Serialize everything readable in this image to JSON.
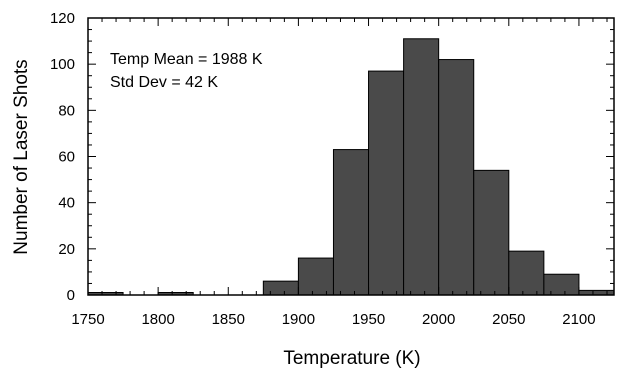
{
  "chart_data": {
    "type": "bar",
    "bin_width": 25,
    "bin_starts": [
      1750,
      1775,
      1800,
      1825,
      1850,
      1875,
      1900,
      1925,
      1950,
      1975,
      2000,
      2025,
      2050,
      2075,
      2100
    ],
    "values": [
      1,
      0,
      1,
      0,
      0,
      6,
      16,
      63,
      97,
      111,
      102,
      54,
      19,
      9,
      2
    ],
    "xlabel": "Temperature (K)",
    "ylabel": "Number of Laser Shots",
    "xlim": [
      1750,
      2125
    ],
    "ylim": [
      0,
      120
    ],
    "x_ticks": [
      1750,
      1800,
      1850,
      1900,
      1950,
      2000,
      2050,
      2100
    ],
    "y_ticks": [
      0,
      20,
      40,
      60,
      80,
      100,
      120
    ],
    "annotations": [
      "Temp Mean = 1988 K",
      "Std Dev = 42 K"
    ],
    "grid": false,
    "legend": "none",
    "bar_color": "#4a4a4a"
  }
}
